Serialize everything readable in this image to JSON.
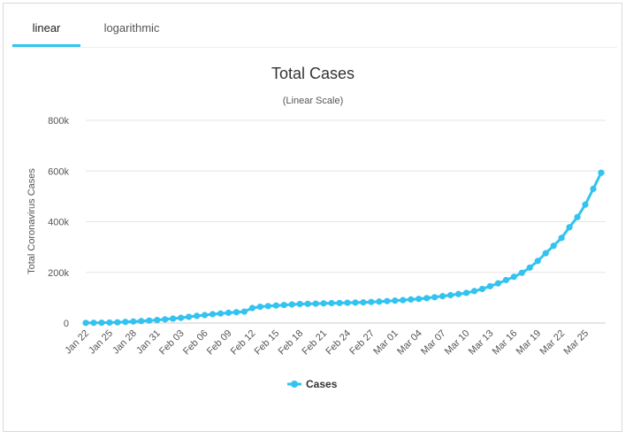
{
  "tabs": [
    {
      "label": "linear",
      "active": true
    },
    {
      "label": "logarithmic",
      "active": false
    }
  ],
  "colors": {
    "accent": "#33c3f0",
    "series": "#33c3f0",
    "grid": "#e6e6e6"
  },
  "chart_data": {
    "type": "line",
    "title": "Total Cases",
    "subtitle": "(Linear Scale)",
    "xlabel": "",
    "ylabel": "Total Coronavirus Cases",
    "ylim": [
      0,
      800000
    ],
    "yticks": [
      0,
      200000,
      400000,
      600000,
      800000
    ],
    "ytick_labels": [
      "0",
      "200k",
      "400k",
      "600k",
      "800k"
    ],
    "xtick_labels": [
      "Jan 22",
      "Jan 25",
      "Jan 28",
      "Jan 31",
      "Feb 03",
      "Feb 06",
      "Feb 09",
      "Feb 12",
      "Feb 15",
      "Feb 18",
      "Feb 21",
      "Feb 24",
      "Feb 27",
      "Mar 01",
      "Mar 04",
      "Mar 07",
      "Mar 10",
      "Mar 13",
      "Mar 16",
      "Mar 19",
      "Mar 22",
      "Mar 25"
    ],
    "grid": true,
    "legend": "bottom-center",
    "x": [
      "Jan 22",
      "Jan 23",
      "Jan 24",
      "Jan 25",
      "Jan 26",
      "Jan 27",
      "Jan 28",
      "Jan 29",
      "Jan 30",
      "Jan 31",
      "Feb 01",
      "Feb 02",
      "Feb 03",
      "Feb 04",
      "Feb 05",
      "Feb 06",
      "Feb 07",
      "Feb 08",
      "Feb 09",
      "Feb 10",
      "Feb 11",
      "Feb 12",
      "Feb 13",
      "Feb 14",
      "Feb 15",
      "Feb 16",
      "Feb 17",
      "Feb 18",
      "Feb 19",
      "Feb 20",
      "Feb 21",
      "Feb 22",
      "Feb 23",
      "Feb 24",
      "Feb 25",
      "Feb 26",
      "Feb 27",
      "Feb 28",
      "Feb 29",
      "Mar 01",
      "Mar 02",
      "Mar 03",
      "Mar 04",
      "Mar 05",
      "Mar 06",
      "Mar 07",
      "Mar 08",
      "Mar 09",
      "Mar 10",
      "Mar 11",
      "Mar 12",
      "Mar 13",
      "Mar 14",
      "Mar 15",
      "Mar 16",
      "Mar 17",
      "Mar 18",
      "Mar 19",
      "Mar 20",
      "Mar 21",
      "Mar 22",
      "Mar 23",
      "Mar 24",
      "Mar 25",
      "Mar 26",
      "Mar 27"
    ],
    "series": [
      {
        "name": "Cases",
        "values": [
          580,
          845,
          1317,
          2015,
          2800,
          4581,
          6058,
          7813,
          9823,
          11950,
          14553,
          17391,
          20630,
          24545,
          28266,
          31439,
          34876,
          37552,
          40553,
          43099,
          45134,
          59287,
          64438,
          67100,
          69197,
          71329,
          73332,
          75184,
          75700,
          76677,
          77673,
          78651,
          79205,
          80087,
          80828,
          81820,
          83112,
          84615,
          86604,
          88585,
          90443,
          93016,
          95314,
          98425,
          102050,
          106099,
          109991,
          114381,
          118948,
          126214,
          134576,
          145483,
          156653,
          169593,
          182490,
          198238,
          218822,
          244933,
          275597,
          305036,
          336004,
          378287,
          418045,
          467653,
          529591,
          593291
        ]
      }
    ]
  }
}
